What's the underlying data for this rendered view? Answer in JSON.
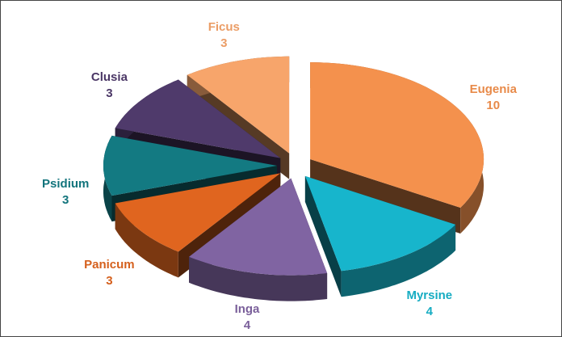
{
  "chart_data": {
    "type": "pie",
    "categories": [
      "Eugenia",
      "Myrsine",
      "Inga",
      "Panicum",
      "Psidium",
      "Clusia",
      "Ficus"
    ],
    "values": [
      10,
      4,
      4,
      3,
      3,
      3,
      3
    ],
    "colors": [
      "#f4914d",
      "#17b5cc",
      "#8064a2",
      "#e0651f",
      "#137a82",
      "#4f3a6b",
      "#f7a56b"
    ]
  }
}
